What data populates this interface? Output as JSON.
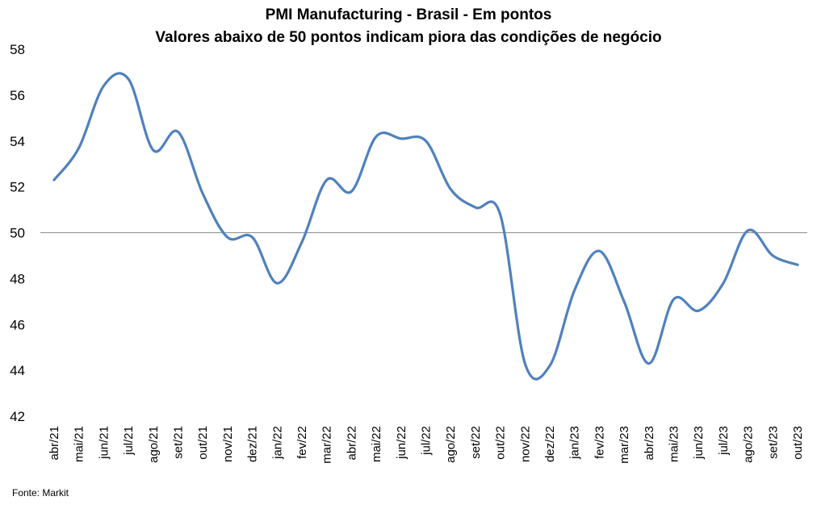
{
  "chart_data": {
    "type": "line",
    "title": "PMI Manufacturing - Brasil - Em pontos",
    "subtitle": "Valores abaixo de 50 pontos indicam piora das condições de negócio",
    "source": "Fonte: Markit",
    "ylim": [
      42,
      58
    ],
    "yticks": [
      42,
      44,
      46,
      48,
      50,
      52,
      54,
      56,
      58
    ],
    "reference_line": 50,
    "grid": false,
    "line_color": "#4F81BD",
    "categories": [
      "abr/21",
      "mai/21",
      "jun/21",
      "jul/21",
      "ago/21",
      "set/21",
      "out/21",
      "nov/21",
      "dez/21",
      "jan/22",
      "fev/22",
      "mar/22",
      "abr/22",
      "mai/22",
      "jun/22",
      "jul/22",
      "ago/22",
      "set/22",
      "out/22",
      "nov/22",
      "dez/22",
      "jan/23",
      "fev/23",
      "mar/23",
      "abr/23",
      "mai/23",
      "jun/23",
      "jul/23",
      "ago/23",
      "set/23",
      "out/23"
    ],
    "values": [
      52.3,
      53.7,
      56.4,
      56.7,
      53.6,
      54.4,
      51.7,
      49.8,
      49.8,
      47.8,
      49.6,
      52.3,
      51.8,
      54.2,
      54.1,
      54.0,
      51.9,
      51.1,
      50.8,
      44.3,
      44.2,
      47.5,
      49.2,
      47.0,
      44.3,
      47.1,
      46.6,
      47.8,
      50.1,
      49.0,
      48.6
    ]
  }
}
